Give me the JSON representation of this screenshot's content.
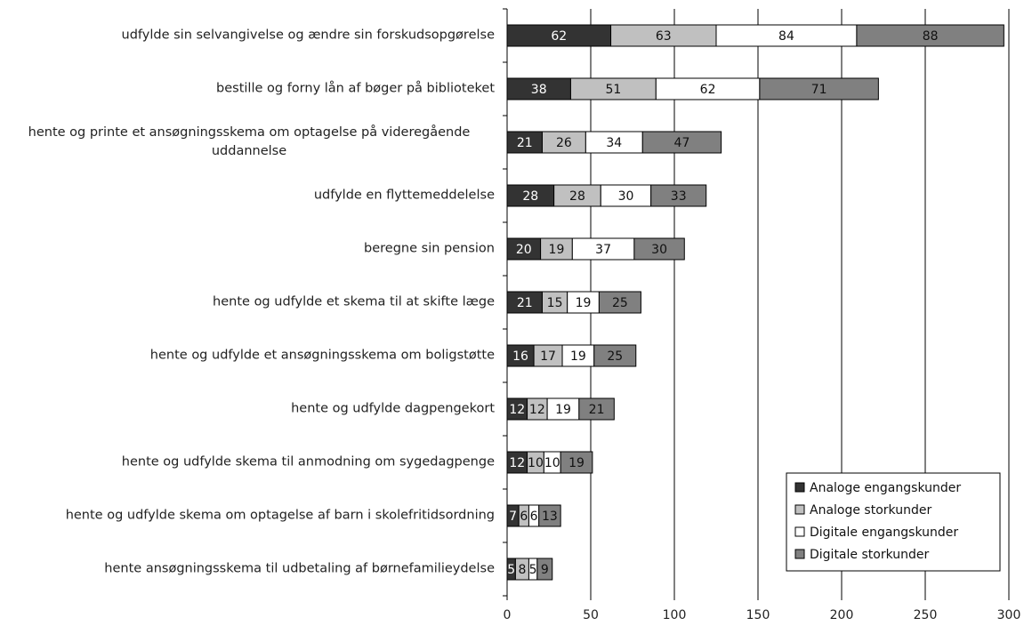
{
  "chart_data": {
    "type": "stacked-bar-horizontal",
    "categories": [
      "udfylde sin selvangivelse og ændre sin forskudsopgørelse",
      "bestille og forny lån af bøger på biblioteket",
      "hente og printe et ansøgningsskema om optagelse på videregående uddannelse",
      "udfylde en flyttemeddelelse",
      "beregne sin pension",
      "hente og udfylde et skema til at skifte læge",
      "hente og udfylde et ansøgningsskema om boligstøtte",
      "hente og udfylde dagpengekort",
      "hente og udfylde skema til anmodning om sygedagpenge",
      "hente og udfylde skema om optagelse af barn i skolefritidsordning",
      "hente ansøgningsskema til udbetaling af børnefamilieydelse"
    ],
    "series": [
      {
        "name": "Analoge engangskunder",
        "color": "#333333",
        "values": [
          62,
          38,
          21,
          28,
          20,
          21,
          16,
          12,
          12,
          7,
          5
        ]
      },
      {
        "name": "Analoge storkunder",
        "color": "#c0c0c0",
        "values": [
          63,
          51,
          26,
          28,
          19,
          15,
          17,
          12,
          10,
          6,
          8
        ]
      },
      {
        "name": "Digitale engangskunder",
        "color": "#ffffff",
        "values": [
          84,
          62,
          34,
          30,
          37,
          19,
          19,
          19,
          10,
          6,
          5
        ]
      },
      {
        "name": "Digitale storkunder",
        "color": "#808080",
        "values": [
          88,
          71,
          47,
          33,
          30,
          25,
          25,
          21,
          19,
          13,
          9
        ]
      }
    ],
    "xlim": [
      0,
      300
    ],
    "xticks": [
      0,
      50,
      100,
      150,
      200,
      250,
      300
    ],
    "grid": true,
    "legend": "lower right"
  }
}
